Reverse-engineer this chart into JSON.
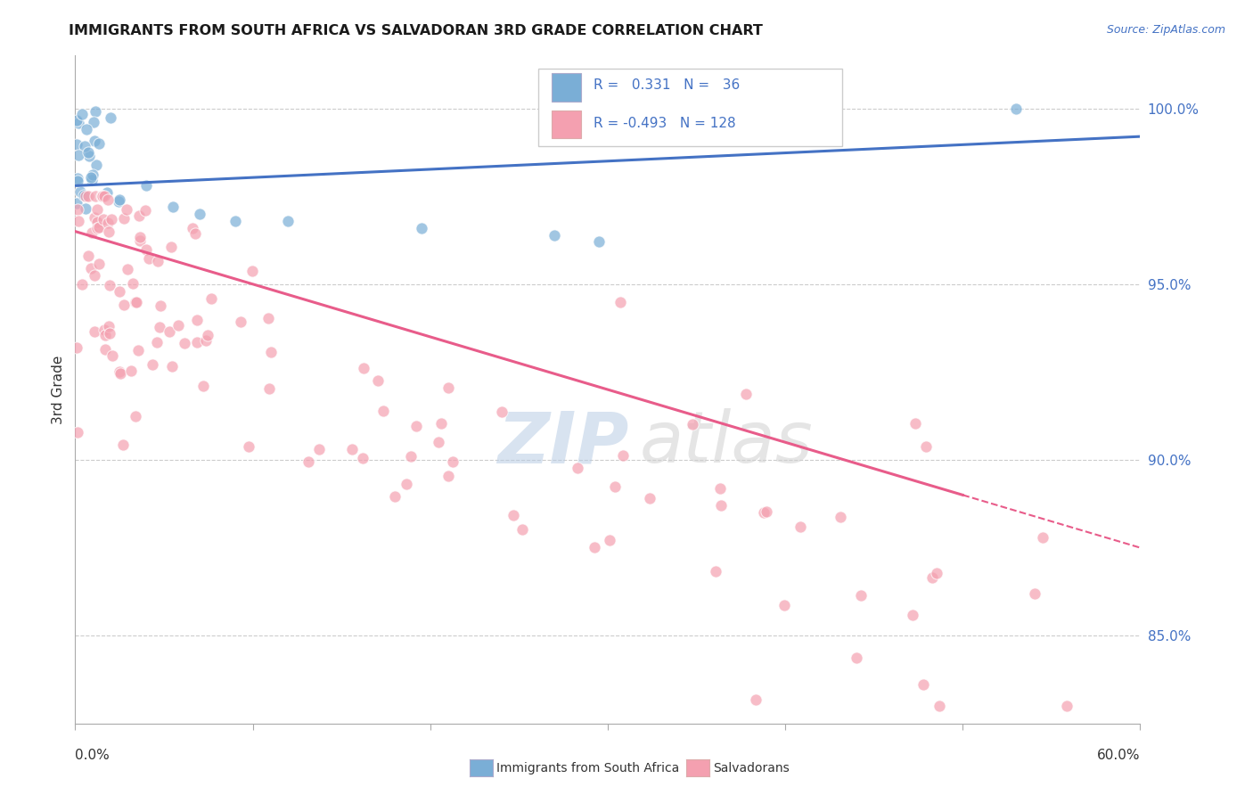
{
  "title": "IMMIGRANTS FROM SOUTH AFRICA VS SALVADORAN 3RD GRADE CORRELATION CHART",
  "source": "Source: ZipAtlas.com",
  "ylabel": "3rd Grade",
  "xlim": [
    0.0,
    0.6
  ],
  "ylim": [
    0.825,
    1.015
  ],
  "xticks": [
    0.0,
    0.1,
    0.2,
    0.3,
    0.4,
    0.5,
    0.6
  ],
  "ytick_right_values": [
    1.0,
    0.95,
    0.9,
    0.85
  ],
  "ytick_right_labels": [
    "100.0%",
    "95.0%",
    "90.0%",
    "85.0%"
  ],
  "grid_color": "#cccccc",
  "background_color": "#ffffff",
  "blue_color": "#7aaed6",
  "pink_color": "#f4a0b0",
  "blue_line_color": "#4472c4",
  "pink_line_color": "#e85c8a",
  "R_blue": 0.331,
  "N_blue": 36,
  "R_pink": -0.493,
  "N_pink": 128,
  "legend_label_blue": "Immigrants from South Africa",
  "legend_label_pink": "Salvadorans",
  "text_color_blue": "#4472c4",
  "text_color_dark": "#333333"
}
